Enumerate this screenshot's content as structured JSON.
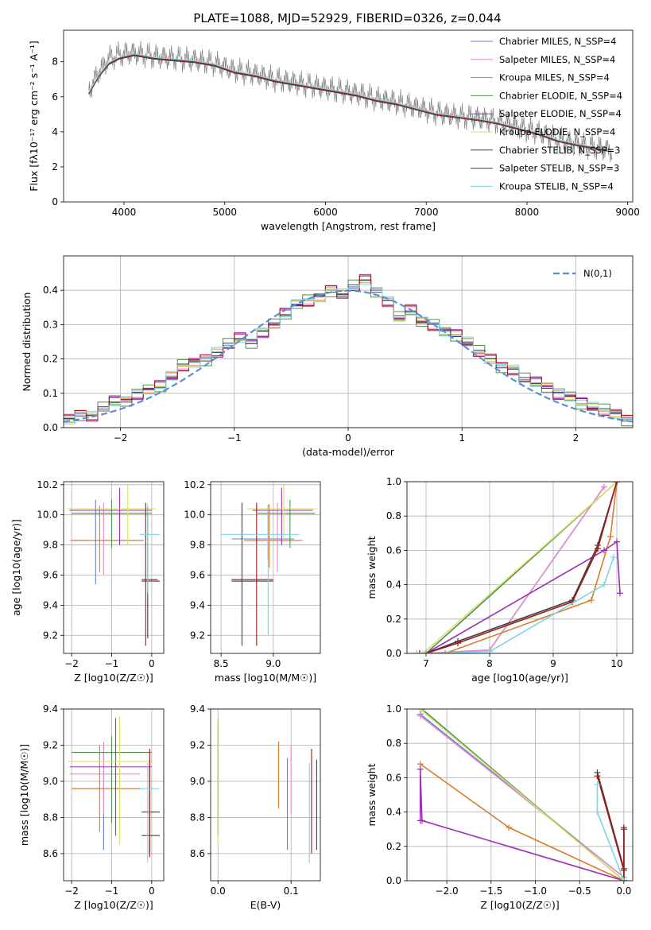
{
  "chart_data": [
    {
      "type": "line",
      "title": "PLATE=1088, MJD=52929, FIBERID=0326, z=0.044",
      "xlabel": "wavelength [Angstrom, rest frame]",
      "ylabel": "Flux [fλ10⁻¹⁷ erg cm⁻² s⁻¹ A⁻¹]",
      "xlim": [
        3400,
        9050
      ],
      "ylim": [
        0,
        9.8
      ],
      "xticks": [
        4000,
        5000,
        6000,
        7000,
        8000,
        9000
      ],
      "yticks": [
        0,
        2,
        4,
        6,
        8
      ],
      "legend_position": "upper right",
      "data_series": {
        "name": "data",
        "color": "#808080",
        "x": [
          3650,
          3750,
          3850,
          3950,
          4100,
          4300,
          4500,
          4700,
          4900,
          5100,
          5300,
          5500,
          5700,
          5900,
          6100,
          6300,
          6500,
          6700,
          6900,
          7100,
          7300,
          7500,
          7700,
          7900,
          8100,
          8300,
          8500,
          8700,
          8850
        ],
        "y": [
          6.4,
          7.4,
          8.2,
          8.4,
          8.5,
          8.3,
          8.2,
          8.1,
          7.9,
          7.5,
          7.3,
          7.0,
          6.8,
          6.6,
          6.4,
          6.2,
          5.9,
          5.7,
          5.4,
          5.1,
          4.9,
          4.8,
          4.6,
          4.3,
          4.0,
          3.6,
          3.3,
          3.1,
          2.9
        ]
      },
      "model_x": [
        3650,
        3750,
        3850,
        3950,
        4100,
        4300,
        4500,
        4700,
        4900,
        5100,
        5300,
        5500,
        5700,
        5900,
        6100,
        6300,
        6500,
        6700,
        6900,
        7100,
        7300,
        7500,
        7700,
        7900,
        8100,
        8300,
        8500,
        8700,
        8800
      ],
      "model_y": [
        6.2,
        7.2,
        7.9,
        8.2,
        8.4,
        8.2,
        8.1,
        8.0,
        7.8,
        7.4,
        7.2,
        6.9,
        6.7,
        6.5,
        6.3,
        6.1,
        5.8,
        5.6,
        5.3,
        5.0,
        4.85,
        4.7,
        4.5,
        4.2,
        3.9,
        3.5,
        3.25,
        3.05,
        2.95
      ],
      "series": [
        {
          "name": "Chabrier MILES, N_SSP=4",
          "color": "#6a7fd8",
          "xmax": 7430
        },
        {
          "name": "Salpeter MILES, N_SSP=4",
          "color": "#e48fc6",
          "xmax": 7430
        },
        {
          "name": "Kroupa MILES, N_SSP=4",
          "color": "#d97b2a",
          "xmax": 7430
        },
        {
          "name": "Chabrier ELODIE, N_SSP=4",
          "color": "#4f8f4f",
          "xmax": 6800
        },
        {
          "name": "Salpeter ELODIE, N_SSP=4",
          "color": "#9b2fb5",
          "xmax": 6800
        },
        {
          "name": "Kroupa ELODIE, N_SSP=4",
          "color": "#d7e36b",
          "xmax": 6800
        },
        {
          "name": "Chabrier STELIB, N_SSP=3",
          "color": "#404040",
          "xmax": 8800
        },
        {
          "name": "Salpeter STELIB, N_SSP=3",
          "color": "#a01818",
          "xmax": 8800
        },
        {
          "name": "Kroupa STELIB, N_SSP=4",
          "color": "#7fd4e6",
          "xmax": 8800
        }
      ]
    },
    {
      "type": "line",
      "title": "",
      "xlabel": "(data-model)/error",
      "ylabel": "Normed distribution",
      "xlim": [
        -2.5,
        2.5
      ],
      "ylim": [
        0,
        0.5
      ],
      "xticks": [
        -2,
        -1,
        0,
        1,
        2
      ],
      "yticks": [
        0.0,
        0.1,
        0.2,
        0.3,
        0.4
      ],
      "legend": "N(0,1)",
      "reference_color": "#5b8dd9",
      "hist_bin_width": 0.1,
      "hist_centers": [
        -2.45,
        -2.35,
        -2.25,
        -2.15,
        -2.05,
        -1.95,
        -1.85,
        -1.75,
        -1.65,
        -1.55,
        -1.45,
        -1.35,
        -1.25,
        -1.15,
        -1.05,
        -0.95,
        -0.85,
        -0.75,
        -0.65,
        -0.55,
        -0.45,
        -0.35,
        -0.25,
        -0.15,
        -0.05,
        0.05,
        0.15,
        0.25,
        0.35,
        0.45,
        0.55,
        0.65,
        0.75,
        0.85,
        0.95,
        1.05,
        1.15,
        1.25,
        1.35,
        1.45,
        1.55,
        1.65,
        1.75,
        1.85,
        1.95,
        2.05,
        2.15,
        2.25,
        2.35,
        2.45
      ],
      "hist_values": [
        0.025,
        0.04,
        0.035,
        0.055,
        0.075,
        0.08,
        0.1,
        0.11,
        0.12,
        0.15,
        0.18,
        0.19,
        0.2,
        0.22,
        0.24,
        0.26,
        0.25,
        0.28,
        0.3,
        0.33,
        0.36,
        0.37,
        0.38,
        0.4,
        0.39,
        0.41,
        0.43,
        0.4,
        0.37,
        0.32,
        0.34,
        0.31,
        0.3,
        0.28,
        0.27,
        0.25,
        0.22,
        0.2,
        0.18,
        0.17,
        0.14,
        0.13,
        0.12,
        0.1,
        0.09,
        0.07,
        0.06,
        0.05,
        0.04,
        0.025
      ],
      "hist_offsets": [
        0,
        0.012,
        -0.01,
        0.02,
        -0.018,
        0.008,
        -0.006,
        0.015,
        -0.014
      ]
    },
    {
      "type": "scatter",
      "title": "",
      "xlabel": "Z [log10(Z/Z☉)]",
      "ylabel": "age [log10(age/yr)]",
      "xlim": [
        -2.2,
        0.3
      ],
      "ylim": [
        9.08,
        10.22
      ],
      "xticks": [
        -2,
        -1,
        0
      ],
      "yticks": [
        9.2,
        9.4,
        9.6,
        9.8,
        10.0,
        10.2
      ],
      "points": [
        {
          "x": -1.4,
          "y": 9.83,
          "xlo": -2.0,
          "xhi": -0.2,
          "ylo": 9.54,
          "yhi": 10.1
        },
        {
          "x": -1.2,
          "y": 9.83,
          "xlo": -2.05,
          "xhi": -0.3,
          "ylo": 9.6,
          "yhi": 10.08
        },
        {
          "x": -1.3,
          "y": 9.83,
          "xlo": -2.0,
          "xhi": -0.25,
          "ylo": 9.62,
          "yhi": 10.06
        },
        {
          "x": -1.0,
          "y": 10.01,
          "xlo": -2.0,
          "xhi": 0.0,
          "ylo": 9.78,
          "yhi": 10.1
        },
        {
          "x": -0.8,
          "y": 10.03,
          "xlo": -2.05,
          "xhi": 0.0,
          "ylo": 9.8,
          "yhi": 10.18
        },
        {
          "x": -0.6,
          "y": 10.04,
          "xlo": -2.1,
          "xhi": 0.1,
          "ylo": 9.8,
          "yhi": 10.2
        },
        {
          "x": -0.1,
          "y": 9.57,
          "xlo": -0.25,
          "xhi": 0.15,
          "ylo": 9.18,
          "yhi": 10.05
        },
        {
          "x": -0.15,
          "y": 9.56,
          "xlo": -0.25,
          "xhi": 0.2,
          "ylo": 9.13,
          "yhi": 10.08
        },
        {
          "x": -0.1,
          "y": 9.87,
          "xlo": -0.3,
          "xhi": 0.2,
          "ylo": 9.48,
          "yhi": 10.07
        }
      ]
    },
    {
      "type": "scatter",
      "title": "",
      "xlabel": "mass [log10(M/M☉)]",
      "ylabel": "",
      "xlim": [
        8.4,
        9.45
      ],
      "ylim": [
        9.08,
        10.22
      ],
      "xticks": [
        8.5,
        9.0
      ],
      "yticks": [
        9.2,
        9.4,
        9.6,
        9.8,
        10.0,
        10.2
      ],
      "points": [
        {
          "x": 8.95,
          "y": 9.84,
          "xlo": 8.6,
          "xhi": 9.2,
          "ylo": 9.7,
          "yhi": 10.06
        },
        {
          "x": 9.04,
          "y": 9.83,
          "xlo": 8.8,
          "xhi": 9.25,
          "ylo": 9.62,
          "yhi": 10.08
        },
        {
          "x": 8.96,
          "y": 9.83,
          "xlo": 8.72,
          "xhi": 9.28,
          "ylo": 9.65,
          "yhi": 10.07
        },
        {
          "x": 9.16,
          "y": 10.01,
          "xlo": 8.85,
          "xhi": 9.4,
          "ylo": 9.78,
          "yhi": 10.1
        },
        {
          "x": 9.08,
          "y": 10.03,
          "xlo": 8.8,
          "xhi": 9.38,
          "ylo": 9.8,
          "yhi": 10.18
        },
        {
          "x": 9.1,
          "y": 10.04,
          "xlo": 8.75,
          "xhi": 9.42,
          "ylo": 9.85,
          "yhi": 10.2
        },
        {
          "x": 8.7,
          "y": 9.56,
          "xlo": 8.6,
          "xhi": 9.0,
          "ylo": 9.13,
          "yhi": 10.08
        },
        {
          "x": 8.84,
          "y": 9.57,
          "xlo": 8.6,
          "xhi": 9.0,
          "ylo": 9.13,
          "yhi": 10.08
        },
        {
          "x": 8.95,
          "y": 9.87,
          "xlo": 8.5,
          "xhi": 9.25,
          "ylo": 9.2,
          "yhi": 10.07
        }
      ]
    },
    {
      "type": "line",
      "title": "",
      "xlabel": "age [log10(age/yr)]",
      "ylabel": "mass weight",
      "xlim": [
        6.7,
        10.25
      ],
      "ylim": [
        0,
        1.0
      ],
      "xticks": [
        7,
        8,
        9,
        10
      ],
      "yticks": [
        0.0,
        0.2,
        0.4,
        0.6,
        0.8,
        1.0
      ],
      "cumulative": [
        {
          "x": [
            6.9,
            7.0,
            8.0,
            9.8
          ],
          "y": [
            0.0,
            0.0,
            0.02,
            0.97
          ]
        },
        {
          "x": [
            6.9,
            7.0,
            8.0,
            9.8
          ],
          "y": [
            0.0,
            0.0,
            0.02,
            0.97
          ]
        },
        {
          "x": [
            6.9,
            7.3,
            9.6,
            9.9,
            10.0
          ],
          "y": [
            0.0,
            0.0,
            0.31,
            0.68,
            1.0
          ]
        },
        {
          "x": [
            6.85,
            7.0,
            10.0
          ],
          "y": [
            0.0,
            0.0,
            1.0
          ]
        },
        {
          "x": [
            6.9,
            7.0,
            9.8,
            10.0,
            10.05
          ],
          "y": [
            0.0,
            0.0,
            0.6,
            0.65,
            0.35
          ]
        },
        {
          "x": [
            6.85,
            6.95,
            10.0
          ],
          "y": [
            0.0,
            0.0,
            1.0
          ]
        },
        {
          "x": [
            7.0,
            7.5,
            9.3,
            9.7,
            10.0
          ],
          "y": [
            0.0,
            0.07,
            0.31,
            0.63,
            1.0
          ]
        },
        {
          "x": [
            7.0,
            7.5,
            9.3,
            9.7,
            10.0
          ],
          "y": [
            0.0,
            0.06,
            0.3,
            0.61,
            1.0
          ]
        },
        {
          "x": [
            7.0,
            8.0,
            9.8,
            9.95
          ],
          "y": [
            0.0,
            0.01,
            0.4,
            0.56
          ]
        }
      ]
    },
    {
      "type": "scatter",
      "title": "",
      "xlabel": "Z [log10(Z/Z☉)]",
      "ylabel": "mass [log10(M/M☉)]",
      "xlim": [
        -2.2,
        0.3
      ],
      "ylim": [
        8.45,
        9.4
      ],
      "xticks": [
        -2,
        -1,
        0
      ],
      "yticks": [
        8.6,
        8.8,
        9.0,
        9.2,
        9.4
      ],
      "points": [
        {
          "x": -1.2,
          "y": 8.96,
          "xlo": -2.0,
          "xhi": -0.2,
          "ylo": 8.62,
          "yhi": 9.2
        },
        {
          "x": -1.2,
          "y": 9.04,
          "xlo": -2.05,
          "xhi": -0.3,
          "ylo": 8.82,
          "yhi": 9.22
        },
        {
          "x": -1.3,
          "y": 8.96,
          "xlo": -2.0,
          "xhi": -0.25,
          "ylo": 8.72,
          "yhi": 9.2
        },
        {
          "x": -1.0,
          "y": 9.16,
          "xlo": -2.0,
          "xhi": 0.0,
          "ylo": 8.77,
          "yhi": 9.25
        },
        {
          "x": -0.9,
          "y": 9.08,
          "xlo": -2.05,
          "xhi": 0.0,
          "ylo": 8.7,
          "yhi": 9.35
        },
        {
          "x": -0.8,
          "y": 9.11,
          "xlo": -2.1,
          "xhi": 0.0,
          "ylo": 8.65,
          "yhi": 9.36
        },
        {
          "x": -0.05,
          "y": 8.7,
          "xlo": -0.25,
          "xhi": 0.2,
          "ylo": 8.6,
          "yhi": 9.12
        },
        {
          "x": -0.05,
          "y": 8.83,
          "xlo": -0.25,
          "xhi": 0.2,
          "ylo": 8.58,
          "yhi": 9.18
        },
        {
          "x": -0.1,
          "y": 8.96,
          "xlo": -0.3,
          "xhi": 0.2,
          "ylo": 8.55,
          "yhi": 9.1
        }
      ]
    },
    {
      "type": "scatter",
      "title": "",
      "xlabel": "E(B-V)",
      "ylabel": "",
      "xlim": [
        -0.01,
        0.14
      ],
      "ylim": [
        8.45,
        9.4
      ],
      "xticks": [
        0.0,
        0.1
      ],
      "yticks": [
        8.6,
        8.8,
        9.0,
        9.2,
        9.4
      ],
      "points": [
        {
          "x": 0.095,
          "y": 8.96,
          "ylo": 8.62,
          "yhi": 9.13
        },
        {
          "x": 0.1,
          "y": 9.04,
          "ylo": 8.82,
          "yhi": 9.2
        },
        {
          "x": 0.083,
          "y": 9.04,
          "ylo": 8.85,
          "yhi": 9.22
        },
        {
          "x": 0.0,
          "y": 9.16,
          "ylo": 8.8,
          "yhi": 9.33
        },
        {
          "x": 0.0,
          "y": 9.08,
          "ylo": 8.7,
          "yhi": 9.35
        },
        {
          "x": 0.0,
          "y": 9.11,
          "ylo": 8.65,
          "yhi": 9.36
        },
        {
          "x": 0.135,
          "y": 8.9,
          "ylo": 8.62,
          "yhi": 9.12
        },
        {
          "x": 0.128,
          "y": 8.96,
          "ylo": 8.6,
          "yhi": 9.18
        },
        {
          "x": 0.125,
          "y": 8.8,
          "ylo": 8.55,
          "yhi": 9.1
        }
      ]
    },
    {
      "type": "line",
      "title": "",
      "xlabel": "Z [log10(Z/Z☉)]",
      "ylabel": "mass weight",
      "xlim": [
        -2.45,
        0.1
      ],
      "ylim": [
        0,
        1.0
      ],
      "xticks": [
        -2.0,
        -1.5,
        -1.0,
        -0.5,
        0.0
      ],
      "yticks": [
        0.0,
        0.2,
        0.4,
        0.6,
        0.8,
        1.0
      ],
      "cumulative": [
        {
          "x": [
            -2.3,
            0.0,
            0.0
          ],
          "y": [
            0.97,
            0.02,
            0.0
          ]
        },
        {
          "x": [
            -2.3,
            0.0,
            0.0
          ],
          "y": [
            0.96,
            0.02,
            0.0
          ]
        },
        {
          "x": [
            -2.3,
            -1.3,
            0.0
          ],
          "y": [
            0.68,
            0.31,
            0.0
          ]
        },
        {
          "x": [
            -2.28,
            0.0
          ],
          "y": [
            1.0,
            0.0
          ]
        },
        {
          "x": [
            -2.3,
            -2.3,
            -2.28,
            0.0
          ],
          "y": [
            0.35,
            0.65,
            0.35,
            0.0
          ]
        },
        {
          "x": [
            -2.28,
            0.0
          ],
          "y": [
            0.99,
            0.0
          ]
        },
        {
          "x": [
            -0.3,
            0.0,
            0.0,
            0.0
          ],
          "y": [
            0.63,
            0.07,
            0.31,
            0.0
          ]
        },
        {
          "x": [
            -0.3,
            0.0,
            0.0,
            0.0
          ],
          "y": [
            0.61,
            0.06,
            0.3,
            0.0
          ]
        },
        {
          "x": [
            -0.3,
            -0.3,
            0.0
          ],
          "y": [
            0.56,
            0.4,
            0.0
          ]
        }
      ]
    }
  ]
}
